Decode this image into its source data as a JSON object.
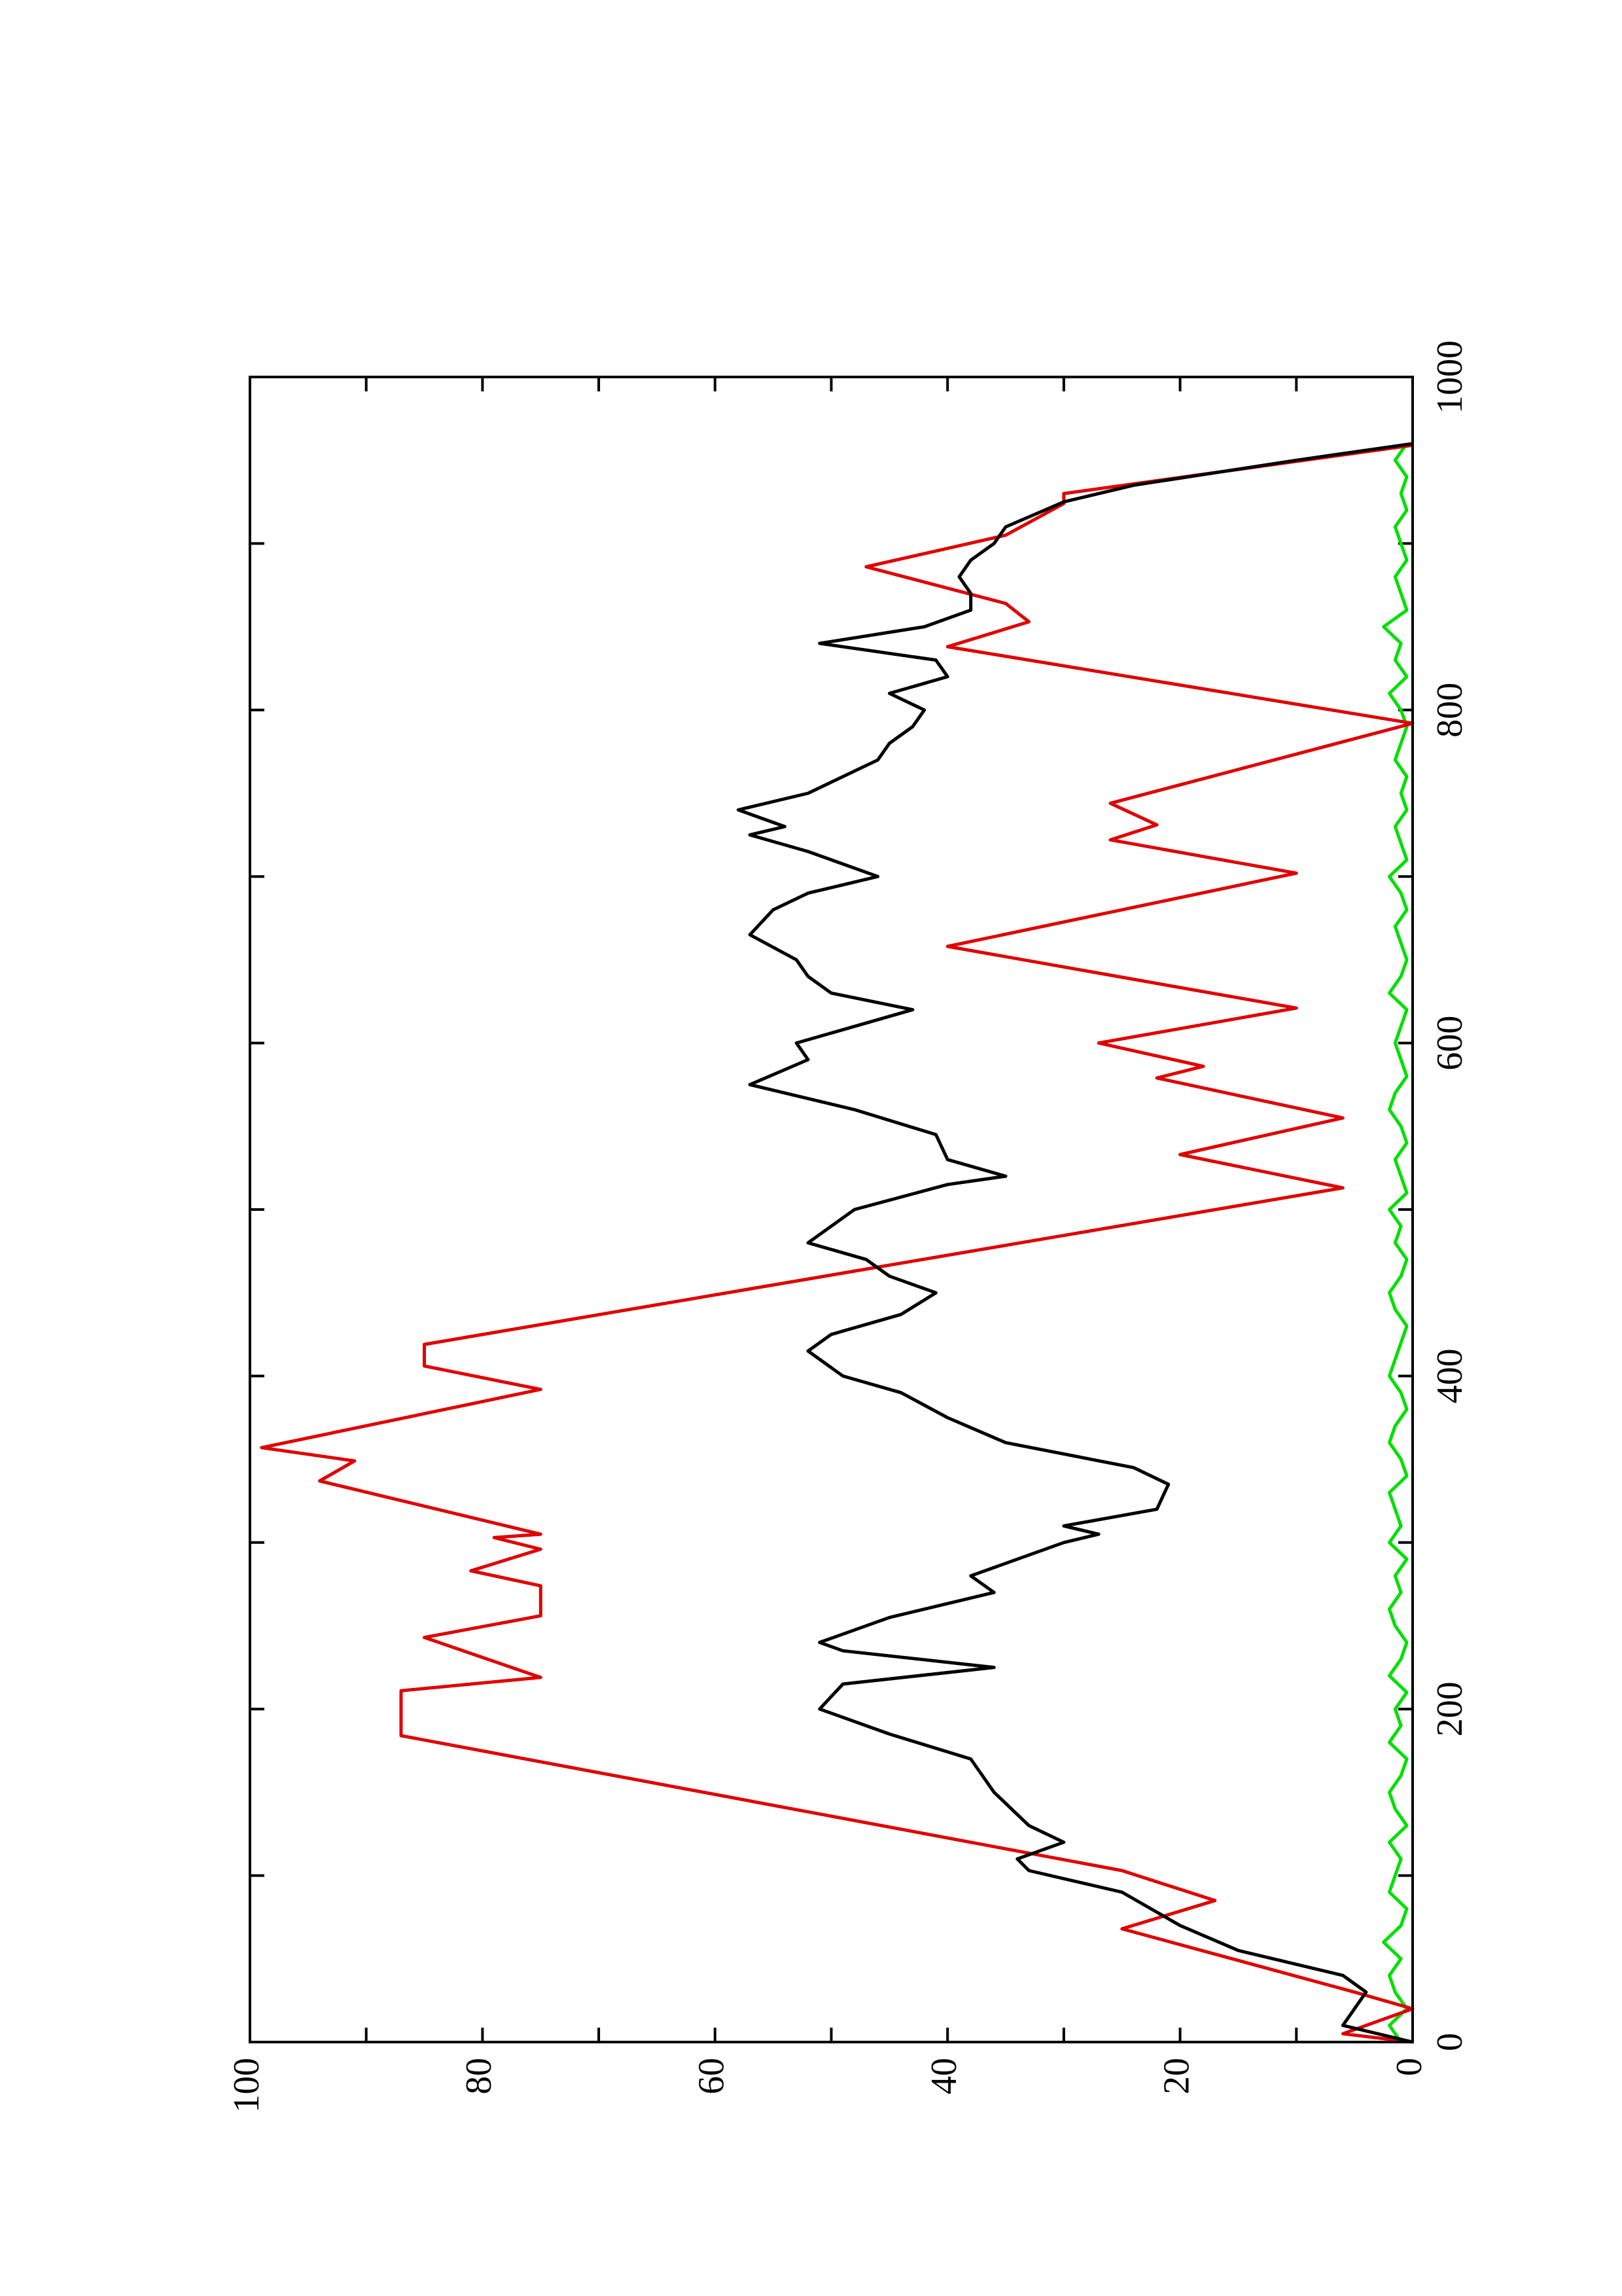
{
  "chart_data": {
    "type": "line",
    "rotated": true,
    "xlim": [
      0,
      1000
    ],
    "xticks": [
      0,
      200,
      400,
      600,
      800,
      1000
    ],
    "xminor_ticks": [
      100,
      300,
      500,
      700,
      900
    ],
    "ylim": [
      0,
      100
    ],
    "yticks": [
      0,
      20,
      40,
      60,
      80,
      100
    ],
    "yminor_ticks": [
      10,
      30,
      50,
      70,
      90
    ],
    "series": [
      {
        "color": "#000000",
        "x": [
          0,
          10,
          30,
          40,
          55,
          70,
          90,
          103,
          110,
          120,
          130,
          150,
          170,
          185,
          200,
          215,
          225,
          235,
          240,
          255,
          270,
          280,
          300,
          305,
          310,
          320,
          335,
          345,
          360,
          375,
          390,
          400,
          415,
          425,
          437,
          450,
          460,
          470,
          480,
          500,
          515,
          520,
          530,
          545,
          560,
          575,
          590,
          600,
          620,
          630,
          640,
          650,
          665,
          680,
          690,
          700,
          715,
          725,
          730,
          740,
          750,
          770,
          780,
          790,
          800,
          810,
          820,
          830,
          840,
          850,
          860,
          870,
          880,
          890,
          900,
          910,
          925,
          935,
          950,
          960
        ],
        "values": [
          0,
          6,
          4,
          6,
          15,
          20,
          25,
          33,
          34,
          30,
          33,
          36,
          38,
          45,
          51,
          49,
          36,
          49,
          51,
          45,
          36,
          38,
          30,
          27,
          30,
          22,
          21,
          24,
          35,
          40,
          44,
          49,
          52,
          50,
          44,
          41,
          45,
          47,
          52,
          48,
          40,
          35,
          40,
          41,
          48,
          57,
          52,
          53,
          43,
          50,
          52,
          53,
          57,
          55,
          52,
          46,
          52,
          57,
          54,
          58,
          52,
          46,
          45,
          43,
          42,
          45,
          40,
          41,
          51,
          42,
          38,
          38,
          39,
          38,
          36,
          35,
          30,
          24,
          10,
          0
        ]
      },
      {
        "color": "#e00000",
        "x": [
          0,
          5,
          20,
          30,
          68,
          85,
          103,
          184,
          211,
          219,
          243,
          256,
          274,
          283,
          296,
          303,
          305,
          337,
          349,
          357,
          392,
          406,
          419,
          513,
          533,
          555,
          579,
          586,
          600,
          621,
          658,
          702,
          722,
          731,
          744,
          792,
          838,
          853,
          864,
          886,
          905,
          924,
          930,
          959
        ],
        "values": [
          0,
          6,
          0,
          5,
          25,
          17,
          25,
          87,
          87,
          75,
          85,
          75,
          75,
          81,
          75,
          79,
          75,
          94,
          91,
          99,
          75,
          85,
          85,
          6,
          20,
          6,
          22,
          18,
          27,
          10,
          40,
          10,
          26,
          22,
          26,
          0,
          40,
          33,
          35,
          47,
          35,
          30,
          30,
          0
        ]
      },
      {
        "color": "#00e000",
        "x": [
          0,
          10,
          20,
          30,
          40,
          50,
          60,
          70,
          80,
          90,
          100,
          110,
          120,
          130,
          140,
          150,
          160,
          170,
          180,
          190,
          200,
          210,
          220,
          230,
          240,
          250,
          260,
          270,
          280,
          290,
          300,
          310,
          320,
          330,
          340,
          350,
          360,
          370,
          380,
          390,
          400,
          410,
          420,
          430,
          440,
          450,
          460,
          470,
          480,
          490,
          500,
          510,
          520,
          530,
          540,
          550,
          560,
          570,
          580,
          590,
          600,
          610,
          620,
          630,
          640,
          650,
          660,
          670,
          680,
          690,
          700,
          710,
          720,
          730,
          740,
          750,
          760,
          770,
          780,
          790,
          800,
          810,
          820,
          830,
          840,
          850,
          860,
          870,
          880,
          890,
          900,
          910,
          920,
          930,
          940,
          950,
          960
        ],
        "values": [
          1,
          2,
          0.5,
          1.5,
          2,
          1,
          2.5,
          1,
          0.5,
          2,
          1.5,
          1,
          2,
          0.5,
          1.5,
          2,
          1,
          0.5,
          2,
          1,
          1.5,
          0.5,
          2,
          1,
          0.5,
          1.5,
          2,
          1,
          1.5,
          0.5,
          2,
          1,
          1.5,
          2,
          0.5,
          1,
          2,
          1.5,
          0.5,
          1,
          2,
          1.5,
          1,
          0.5,
          1.5,
          2,
          1,
          0.5,
          1.5,
          1,
          2,
          0.5,
          1,
          1.5,
          0.5,
          1,
          2,
          1.5,
          0.5,
          1,
          1.5,
          1,
          0.5,
          2,
          1,
          0.5,
          1,
          1.5,
          0.5,
          1,
          2,
          0.5,
          1,
          1.5,
          0.5,
          1,
          0.5,
          1.5,
          1,
          0.5,
          1,
          2,
          0.5,
          1.5,
          1,
          2.5,
          0.5,
          1,
          1.5,
          0.5,
          1,
          1.5,
          0.5,
          1,
          0.5,
          1.5,
          0.5
        ]
      }
    ]
  }
}
